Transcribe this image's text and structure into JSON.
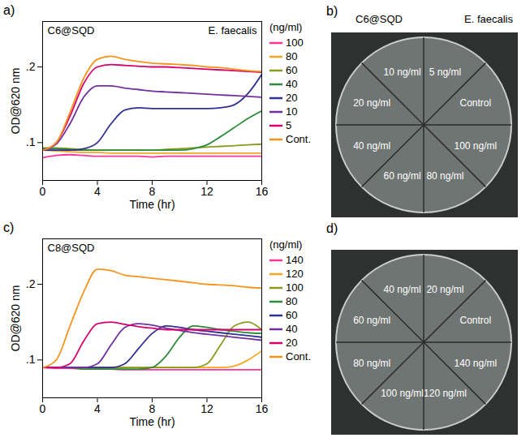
{
  "chart_data": [
    {
      "type": "line",
      "panel": "a)",
      "title": "C6@SQD",
      "subtitle": "E. faecalis",
      "x_label": "Time (hr)",
      "y_label": "OD@620 nm",
      "legend_title": "(ng/ml)",
      "legend": "right",
      "xlim": [
        0,
        16
      ],
      "xticks": [
        0,
        4,
        8,
        12,
        16
      ],
      "ylim": [
        0.05,
        0.26
      ],
      "yticks": [
        {
          "value": 0.1,
          "label": ".1"
        },
        {
          "value": 0.2,
          "label": ".2"
        }
      ],
      "x": [
        0,
        1,
        2,
        3,
        4,
        5,
        6,
        7,
        8,
        9,
        10,
        11,
        12,
        13,
        14,
        15,
        16
      ],
      "series": [
        {
          "name": "100",
          "color": "#ff3399",
          "values": [
            0.08,
            0.083,
            0.084,
            0.083,
            0.082,
            0.082,
            0.082,
            0.082,
            0.081,
            0.082,
            0.082,
            0.082,
            0.082,
            0.082,
            0.082,
            0.082,
            0.082
          ]
        },
        {
          "name": "80",
          "color": "#f5a623",
          "values": [
            0.09,
            0.089,
            0.088,
            0.087,
            0.087,
            0.086,
            0.086,
            0.086,
            0.086,
            0.086,
            0.086,
            0.086,
            0.086,
            0.086,
            0.086,
            0.086,
            0.086
          ]
        },
        {
          "name": "60",
          "color": "#8c9a1c",
          "values": [
            0.093,
            0.093,
            0.092,
            0.091,
            0.09,
            0.09,
            0.09,
            0.09,
            0.09,
            0.091,
            0.092,
            0.093,
            0.094,
            0.095,
            0.096,
            0.097,
            0.098
          ]
        },
        {
          "name": "40",
          "color": "#2e8b3a",
          "values": [
            0.092,
            0.092,
            0.091,
            0.09,
            0.09,
            0.09,
            0.09,
            0.09,
            0.09,
            0.09,
            0.09,
            0.092,
            0.097,
            0.108,
            0.12,
            0.132,
            0.142
          ]
        },
        {
          "name": "20",
          "color": "#2e3192",
          "values": [
            0.09,
            0.09,
            0.09,
            0.092,
            0.1,
            0.125,
            0.143,
            0.146,
            0.145,
            0.145,
            0.145,
            0.145,
            0.145,
            0.146,
            0.15,
            0.165,
            0.19
          ]
        },
        {
          "name": "10",
          "color": "#7030a0",
          "values": [
            0.09,
            0.098,
            0.125,
            0.16,
            0.175,
            0.175,
            0.172,
            0.17,
            0.168,
            0.167,
            0.166,
            0.165,
            0.164,
            0.163,
            0.162,
            0.161,
            0.16
          ]
        },
        {
          "name": "5",
          "color": "#d6006e",
          "values": [
            0.09,
            0.1,
            0.135,
            0.178,
            0.2,
            0.203,
            0.202,
            0.201,
            0.2,
            0.2,
            0.199,
            0.198,
            0.197,
            0.196,
            0.195,
            0.194,
            0.193
          ]
        },
        {
          "name": "Cont.",
          "color": "#f7941d",
          "values": [
            0.09,
            0.1,
            0.14,
            0.185,
            0.21,
            0.214,
            0.21,
            0.207,
            0.205,
            0.204,
            0.203,
            0.202,
            0.2,
            0.199,
            0.197,
            0.195,
            0.194
          ]
        }
      ]
    },
    {
      "type": "plate",
      "panel": "b)",
      "title": "C6@SQD",
      "subtitle": "E. faecalis",
      "sectors": [
        "5 ng/ml",
        "Control",
        "100 ng/ml",
        "80 ng/ml",
        "60 ng/ml",
        "40 ng/ml",
        "20 ng/ml",
        "10 ng/ml"
      ]
    },
    {
      "type": "line",
      "panel": "c)",
      "title": "C8@SQD",
      "x_label": "Time (hr)",
      "y_label": "OD@620 nm",
      "legend_title": "(ng/ml)",
      "legend": "right",
      "xlim": [
        0,
        16
      ],
      "xticks": [
        0,
        4,
        8,
        12,
        16
      ],
      "ylim": [
        0.05,
        0.26
      ],
      "yticks": [
        {
          "value": 0.1,
          "label": ".1"
        },
        {
          "value": 0.2,
          "label": ".2"
        }
      ],
      "x": [
        0,
        1,
        2,
        3,
        4,
        5,
        6,
        7,
        8,
        9,
        10,
        11,
        12,
        13,
        14,
        15,
        16
      ],
      "series": [
        {
          "name": "140",
          "color": "#ff3399",
          "values": [
            0.09,
            0.089,
            0.089,
            0.088,
            0.088,
            0.088,
            0.087,
            0.087,
            0.087,
            0.087,
            0.087,
            0.087,
            0.087,
            0.087,
            0.087,
            0.087,
            0.087
          ]
        },
        {
          "name": "120",
          "color": "#f5a623",
          "values": [
            0.09,
            0.09,
            0.09,
            0.09,
            0.09,
            0.09,
            0.09,
            0.09,
            0.09,
            0.09,
            0.09,
            0.09,
            0.09,
            0.09,
            0.092,
            0.1,
            0.112
          ]
        },
        {
          "name": "100",
          "color": "#8c9a1c",
          "values": [
            0.09,
            0.09,
            0.09,
            0.09,
            0.09,
            0.09,
            0.09,
            0.09,
            0.09,
            0.09,
            0.09,
            0.09,
            0.095,
            0.12,
            0.145,
            0.15,
            0.14
          ]
        },
        {
          "name": "80",
          "color": "#2e8b3a",
          "values": [
            0.09,
            0.09,
            0.09,
            0.088,
            0.088,
            0.088,
            0.088,
            0.088,
            0.09,
            0.105,
            0.13,
            0.145,
            0.143,
            0.14,
            0.138,
            0.136,
            0.135
          ]
        },
        {
          "name": "60",
          "color": "#2e3192",
          "values": [
            0.09,
            0.09,
            0.09,
            0.09,
            0.09,
            0.09,
            0.095,
            0.115,
            0.135,
            0.145,
            0.143,
            0.14,
            0.138,
            0.136,
            0.134,
            0.132,
            0.13
          ]
        },
        {
          "name": "40",
          "color": "#7030a0",
          "values": [
            0.09,
            0.09,
            0.09,
            0.09,
            0.095,
            0.12,
            0.143,
            0.148,
            0.146,
            0.142,
            0.139,
            0.136,
            0.134,
            0.132,
            0.13,
            0.128,
            0.126
          ]
        },
        {
          "name": "20",
          "color": "#d6006e",
          "values": [
            0.09,
            0.09,
            0.095,
            0.125,
            0.148,
            0.15,
            0.147,
            0.144,
            0.142,
            0.14,
            0.14,
            0.14,
            0.14,
            0.14,
            0.14,
            0.14,
            0.14
          ]
        },
        {
          "name": "Cont.",
          "color": "#f7941d",
          "values": [
            0.09,
            0.1,
            0.145,
            0.19,
            0.22,
            0.218,
            0.212,
            0.21,
            0.208,
            0.206,
            0.204,
            0.202,
            0.2,
            0.199,
            0.198,
            0.196,
            0.195
          ]
        }
      ]
    },
    {
      "type": "plate",
      "panel": "d)",
      "sectors": [
        "20 ng/ml",
        "Control",
        "140 ng/ml",
        "120 ng/ml",
        "100 ng/ml",
        "80 ng/ml",
        "60 ng/ml",
        "40 ng/ml"
      ]
    }
  ]
}
